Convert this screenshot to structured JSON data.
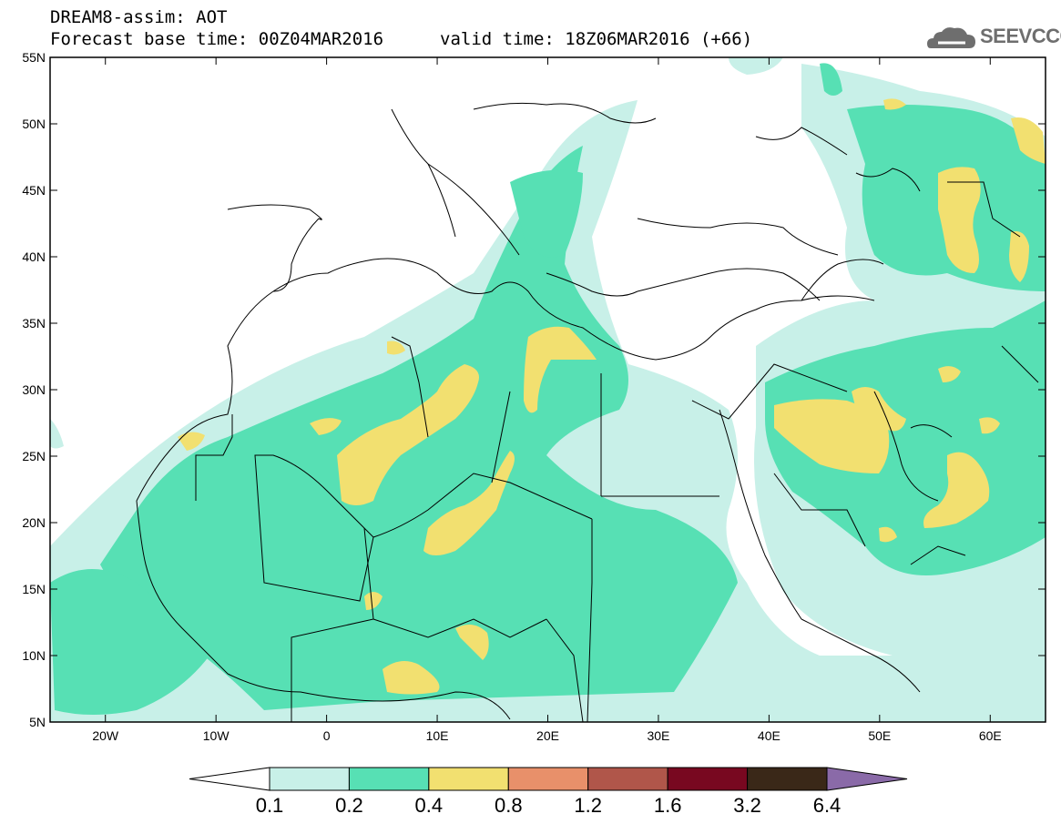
{
  "header": {
    "title": "DREAM8-assim: AOT",
    "base_time": "Forecast base time: 00Z04MAR2016",
    "valid_time": "valid time: 18Z06MAR2016 (+66)"
  },
  "logo": {
    "text": "SEEVCCC",
    "icon": "cloud-icon"
  },
  "axes": {
    "lat_labels": [
      "55N",
      "50N",
      "45N",
      "40N",
      "35N",
      "30N",
      "25N",
      "20N",
      "15N",
      "10N",
      "5N"
    ],
    "lat_values": [
      55,
      50,
      45,
      40,
      35,
      30,
      25,
      20,
      15,
      10,
      5
    ],
    "lon_labels": [
      "20W",
      "10W",
      "0",
      "10E",
      "20E",
      "30E",
      "40E",
      "50E",
      "60E"
    ],
    "lon_values": [
      -20,
      -10,
      0,
      10,
      20,
      30,
      40,
      50,
      60
    ],
    "lon_range": [
      -25,
      65
    ],
    "lat_range": [
      5,
      55
    ]
  },
  "colorbar": {
    "boundaries": [
      "0.1",
      "0.2",
      "0.4",
      "0.8",
      "1.2",
      "1.6",
      "3.2",
      "6.4"
    ],
    "colors": [
      "#c8f0e8",
      "#57e0b4",
      "#f2e070",
      "#e8906a",
      "#b0564a",
      "#780820",
      "#3a2818",
      "#8a6aa8"
    ],
    "under_color": "#ffffff"
  },
  "colors": {
    "level_0_1": "#c8f0e8",
    "level_0_2": "#57e0b4",
    "level_0_4": "#f2e070",
    "frame": "#000000",
    "border_lines": "#000000",
    "logo": "#6e6e6e"
  }
}
